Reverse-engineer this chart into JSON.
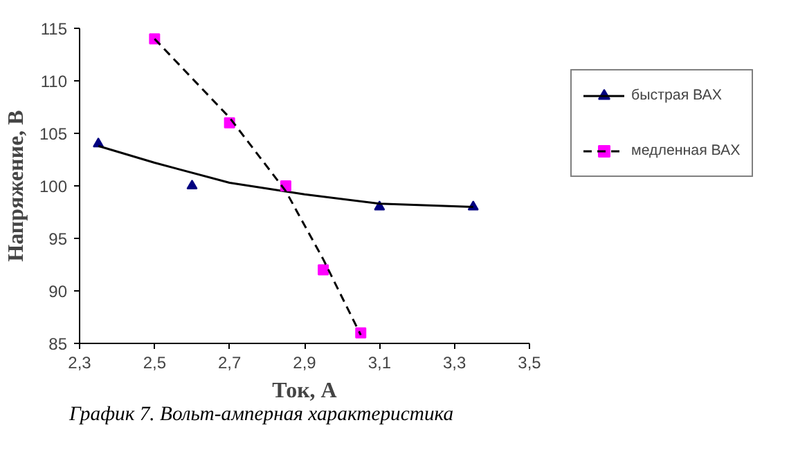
{
  "chart_data": {
    "type": "scatter",
    "xlabel": "Ток, А",
    "ylabel": "Напряжение, В",
    "annotations": [
      "График 7. Вольт-амперная характеристика"
    ],
    "xlim": [
      2.3,
      3.5
    ],
    "ylim": [
      85,
      115
    ],
    "xticks": [
      {
        "value": 2.3,
        "label": "2,3"
      },
      {
        "value": 2.5,
        "label": "2,5"
      },
      {
        "value": 2.7,
        "label": "2,7"
      },
      {
        "value": 2.9,
        "label": "2,9"
      },
      {
        "value": 3.1,
        "label": "3,1"
      },
      {
        "value": 3.3,
        "label": "3,3"
      },
      {
        "value": 3.5,
        "label": "3,5"
      }
    ],
    "yticks": [
      85,
      90,
      95,
      100,
      105,
      110,
      115
    ],
    "grid": false,
    "legend": "right",
    "series": [
      {
        "name": "быстрая ВАХ",
        "marker": "triangle",
        "color": "#000080",
        "x": [
          2.35,
          2.6,
          3.1,
          3.35
        ],
        "values": [
          104,
          100,
          98,
          98
        ]
      },
      {
        "type": "line",
        "line_style": "solid",
        "color": "#000000",
        "x": [
          2.35,
          2.5,
          2.7,
          2.9,
          3.1,
          3.35
        ],
        "values": [
          103.8,
          102.2,
          100.3,
          99.2,
          98.3,
          98.0
        ]
      },
      {
        "name": "медленная ВАХ",
        "marker": "square",
        "color": "#ff00ff",
        "x": [
          2.5,
          2.7,
          2.85,
          2.95,
          3.05
        ],
        "values": [
          114,
          106,
          100,
          92,
          86
        ]
      },
      {
        "type": "line",
        "line_style": "dashed",
        "color": "#000000",
        "x": [
          2.5,
          2.7,
          2.85,
          2.95,
          3.05
        ],
        "values": [
          114,
          106.5,
          99.5,
          93,
          85.8
        ]
      }
    ]
  }
}
